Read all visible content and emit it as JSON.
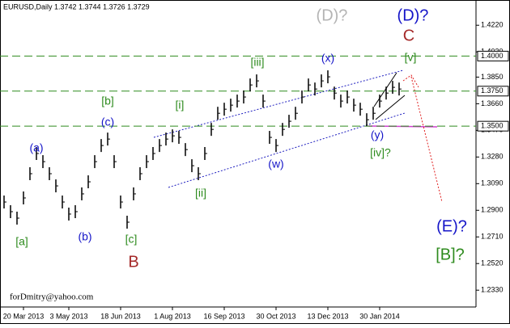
{
  "chart_data": {
    "type": "price-bars",
    "title": "EURUSD,Daily  1.3742 1.3744 1.3726 1.3729",
    "watermark": "forDmitry@yahoo.com",
    "categories": [
      null,
      null,
      null,
      "20 Mar 2013",
      null,
      null,
      null,
      null,
      null,
      null,
      "3 May 2013",
      null,
      null,
      null,
      null,
      null,
      null,
      null,
      "18 Jun 2013",
      null,
      null,
      null,
      null,
      null,
      null,
      null,
      "1 Aug 2013",
      null,
      null,
      null,
      null,
      null,
      null,
      null,
      "16 Sep 2013",
      null,
      null,
      null,
      null,
      null,
      null,
      null,
      "30 Oct 2013",
      null,
      null,
      null,
      null,
      null,
      null,
      null,
      "13 Dec 2013",
      null,
      null,
      null,
      null,
      null,
      null,
      null,
      "30 Jan 2014",
      null,
      null,
      null
    ],
    "values": [
      1.2959,
      1.289,
      1.2844,
      1.2988,
      1.3161,
      1.3305,
      1.3247,
      1.3161,
      1.3074,
      1.2959,
      1.2873,
      1.289,
      1.3017,
      1.3103,
      1.3247,
      1.3362,
      1.3408,
      1.3247,
      1.2959,
      1.2815,
      1.3017,
      1.3161,
      1.3247,
      1.3305,
      1.3362,
      1.3408,
      1.3431,
      1.342,
      1.3333,
      1.3218,
      1.3161,
      1.3305,
      1.3477,
      1.3592,
      1.3621,
      1.365,
      1.3679,
      1.3708,
      1.3794,
      1.3823,
      1.3679,
      1.342,
      1.3362,
      1.3477,
      1.3535,
      1.3592,
      1.3708,
      1.3794,
      1.3765,
      1.3823,
      1.3852,
      1.3736,
      1.3679,
      1.3708,
      1.365,
      1.3621,
      1.3546,
      1.3592,
      1.3679,
      1.3736,
      1.3777,
      1.3765
    ],
    "color": "#000000",
    "ylim": [
      1.221,
      1.44
    ],
    "yticks": [
      {
        "value": 1.422,
        "label": "1.4220"
      },
      {
        "value": 1.403,
        "label": "1.4030"
      },
      {
        "value": 1.385,
        "label": "1.3850"
      },
      {
        "value": 1.366,
        "label": "1.3660"
      },
      {
        "value": 1.347,
        "label": "1.3470"
      },
      {
        "value": 1.328,
        "label": "1.3280"
      },
      {
        "value": 1.309,
        "label": "1.3090"
      },
      {
        "value": 1.29,
        "label": "1.2900"
      },
      {
        "value": 1.271,
        "label": "1.2710"
      },
      {
        "value": 1.252,
        "label": "1.2520"
      },
      {
        "value": 1.233,
        "label": "1.2330"
      }
    ],
    "levels": [
      {
        "value": 1.4,
        "label": "1.4000"
      },
      {
        "value": 1.375,
        "label": "1.3750"
      },
      {
        "value": 1.35,
        "label": "1.3500"
      }
    ],
    "level_color": "#2e8b1e",
    "annotations": [
      {
        "text": "(D)?",
        "color": "#b4b4b4"
      },
      {
        "text": "(D)?",
        "color": "#1515c8"
      },
      {
        "text": "C",
        "color": "#a52a2a"
      },
      {
        "text": "[v]",
        "color": "#2e8b1e"
      },
      {
        "text": "(x)",
        "color": "#1515c8"
      },
      {
        "text": "[iii]",
        "color": "#2e8b1e"
      },
      {
        "text": "[b]",
        "color": "#2e8b1e"
      },
      {
        "text": "[i]",
        "color": "#2e8b1e"
      },
      {
        "text": "(c)",
        "color": "#1515c8"
      },
      {
        "text": "(a)",
        "color": "#1515c8"
      },
      {
        "text": "(w)",
        "color": "#1515c8"
      },
      {
        "text": "(y)",
        "color": "#1515c8"
      },
      {
        "text": "[iv]?",
        "color": "#2e8b1e"
      },
      {
        "text": "[ii]",
        "color": "#2e8b1e"
      },
      {
        "text": "[a]",
        "color": "#2e8b1e"
      },
      {
        "text": "(b)",
        "color": "#1515c8"
      },
      {
        "text": "[c]",
        "color": "#2e8b1e"
      },
      {
        "text": "B",
        "color": "#a52a2a"
      },
      {
        "text": "(E)?",
        "color": "#1515c8"
      },
      {
        "text": "[B]?",
        "color": "#2e8b1e"
      }
    ]
  }
}
